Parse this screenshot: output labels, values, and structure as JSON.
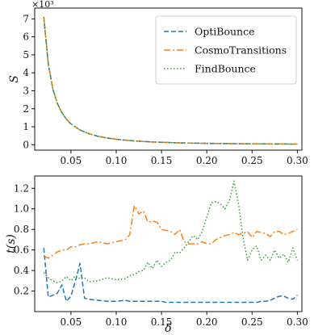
{
  "colors": {
    "optibounce": "#1f77b4",
    "cosmotransitions": "#ff7f0e",
    "findbounce": "#2ca02c"
  },
  "chart_data": [
    {
      "type": "line",
      "ylabel": "S",
      "xlabel": "",
      "yscale_label": "×10³",
      "xlim": [
        0.01,
        0.305
      ],
      "ylim": [
        -0.3,
        7.6
      ],
      "xticks": [
        0.05,
        0.1,
        0.15,
        0.2,
        0.25,
        0.3
      ],
      "xtick_labels": [
        "0.05",
        "0.10",
        "0.15",
        "0.20",
        "0.25",
        "0.30"
      ],
      "show_xtick_labels": true,
      "yticks": [
        0,
        1,
        2,
        3,
        4,
        5,
        6,
        7
      ],
      "ytick_labels": [
        "0",
        "1",
        "2",
        "3",
        "4",
        "5",
        "6",
        "7"
      ],
      "legend": {
        "placement": "top-right",
        "entries": [
          "OptiBounce",
          "CosmoTransitions",
          "FindBounce"
        ]
      },
      "x": [
        0.02,
        0.025,
        0.03,
        0.035,
        0.04,
        0.045,
        0.05,
        0.06,
        0.07,
        0.08,
        0.09,
        0.1,
        0.12,
        0.14,
        0.16,
        0.18,
        0.2,
        0.22,
        0.24,
        0.26,
        0.28,
        0.3
      ],
      "series": [
        {
          "name": "OptiBounce",
          "style": "dashed",
          "values": [
            7.1,
            4.5,
            3.1,
            2.3,
            1.78,
            1.42,
            1.16,
            0.82,
            0.61,
            0.47,
            0.375,
            0.305,
            0.21,
            0.155,
            0.12,
            0.095,
            0.078,
            0.065,
            0.055,
            0.048,
            0.042,
            0.037
          ]
        },
        {
          "name": "CosmoTransitions",
          "style": "dashdot",
          "values": [
            7.1,
            4.5,
            3.1,
            2.3,
            1.78,
            1.42,
            1.16,
            0.82,
            0.61,
            0.47,
            0.375,
            0.305,
            0.21,
            0.155,
            0.12,
            0.095,
            0.078,
            0.065,
            0.055,
            0.048,
            0.042,
            0.037
          ]
        },
        {
          "name": "FindBounce",
          "style": "dotted",
          "values": [
            7.1,
            4.5,
            3.1,
            2.3,
            1.78,
            1.42,
            1.16,
            0.82,
            0.61,
            0.47,
            0.375,
            0.305,
            0.21,
            0.155,
            0.12,
            0.095,
            0.078,
            0.065,
            0.055,
            0.048,
            0.042,
            0.037
          ]
        }
      ]
    },
    {
      "type": "line",
      "ylabel": "t(s)",
      "xlabel": "δ",
      "xlim": [
        0.01,
        0.305
      ],
      "ylim": [
        0,
        1.32
      ],
      "xticks": [
        0.05,
        0.1,
        0.15,
        0.2,
        0.25,
        0.3
      ],
      "xtick_labels": [
        "0.05",
        "0.10",
        "0.15",
        "0.20",
        "0.25",
        "0.30"
      ],
      "show_xtick_labels": true,
      "yticks": [
        0.2,
        0.4,
        0.6,
        0.8,
        1.0,
        1.2
      ],
      "ytick_labels": [
        "0.2",
        "0.4",
        "0.6",
        "0.8",
        "1.0",
        "1.2"
      ],
      "x": [
        0.02,
        0.025,
        0.03,
        0.035,
        0.04,
        0.045,
        0.05,
        0.055,
        0.06,
        0.065,
        0.07,
        0.08,
        0.09,
        0.1,
        0.11,
        0.115,
        0.12,
        0.125,
        0.13,
        0.135,
        0.14,
        0.145,
        0.15,
        0.155,
        0.16,
        0.165,
        0.17,
        0.175,
        0.18,
        0.185,
        0.19,
        0.195,
        0.2,
        0.205,
        0.21,
        0.215,
        0.22,
        0.225,
        0.23,
        0.235,
        0.24,
        0.245,
        0.25,
        0.255,
        0.26,
        0.265,
        0.27,
        0.275,
        0.28,
        0.285,
        0.29,
        0.295,
        0.3
      ],
      "series": [
        {
          "name": "OptiBounce",
          "style": "dashed",
          "values": [
            0.62,
            0.14,
            0.16,
            0.18,
            0.26,
            0.1,
            0.15,
            0.3,
            0.47,
            0.13,
            0.12,
            0.11,
            0.1,
            0.1,
            0.11,
            0.1,
            0.1,
            0.1,
            0.1,
            0.1,
            0.1,
            0.1,
            0.1,
            0.09,
            0.09,
            0.09,
            0.09,
            0.09,
            0.09,
            0.09,
            0.09,
            0.09,
            0.09,
            0.09,
            0.09,
            0.09,
            0.09,
            0.09,
            0.09,
            0.09,
            0.09,
            0.09,
            0.09,
            0.09,
            0.1,
            0.1,
            0.11,
            0.13,
            0.15,
            0.15,
            0.13,
            0.12,
            0.16
          ]
        },
        {
          "name": "CosmoTransitions",
          "style": "dashdot",
          "values": [
            0.54,
            0.52,
            0.55,
            0.58,
            0.6,
            0.6,
            0.63,
            0.63,
            0.65,
            0.66,
            0.66,
            0.68,
            0.66,
            0.68,
            0.7,
            0.75,
            1.03,
            0.95,
            0.98,
            0.87,
            0.88,
            0.87,
            0.8,
            0.79,
            0.78,
            0.75,
            0.8,
            0.68,
            0.66,
            0.66,
            0.66,
            0.68,
            0.66,
            0.66,
            0.7,
            0.72,
            0.74,
            0.75,
            0.77,
            0.75,
            0.76,
            0.78,
            0.72,
            0.78,
            0.77,
            0.76,
            0.73,
            0.78,
            0.78,
            0.75,
            0.76,
            0.78,
            0.8
          ]
        },
        {
          "name": "FindBounce",
          "style": "dotted",
          "values": [
            0.38,
            0.33,
            0.3,
            0.28,
            0.3,
            0.34,
            0.3,
            0.35,
            0.32,
            0.33,
            0.29,
            0.3,
            0.33,
            0.31,
            0.32,
            0.35,
            0.36,
            0.39,
            0.4,
            0.48,
            0.42,
            0.5,
            0.44,
            0.48,
            0.5,
            0.58,
            0.57,
            0.62,
            0.68,
            0.74,
            0.7,
            0.78,
            0.92,
            1.06,
            1.07,
            1.05,
            1.0,
            1.08,
            1.27,
            1.05,
            0.72,
            0.5,
            0.6,
            0.64,
            0.5,
            0.55,
            0.5,
            0.6,
            0.52,
            0.56,
            0.48,
            0.62,
            0.5
          ]
        }
      ]
    }
  ]
}
